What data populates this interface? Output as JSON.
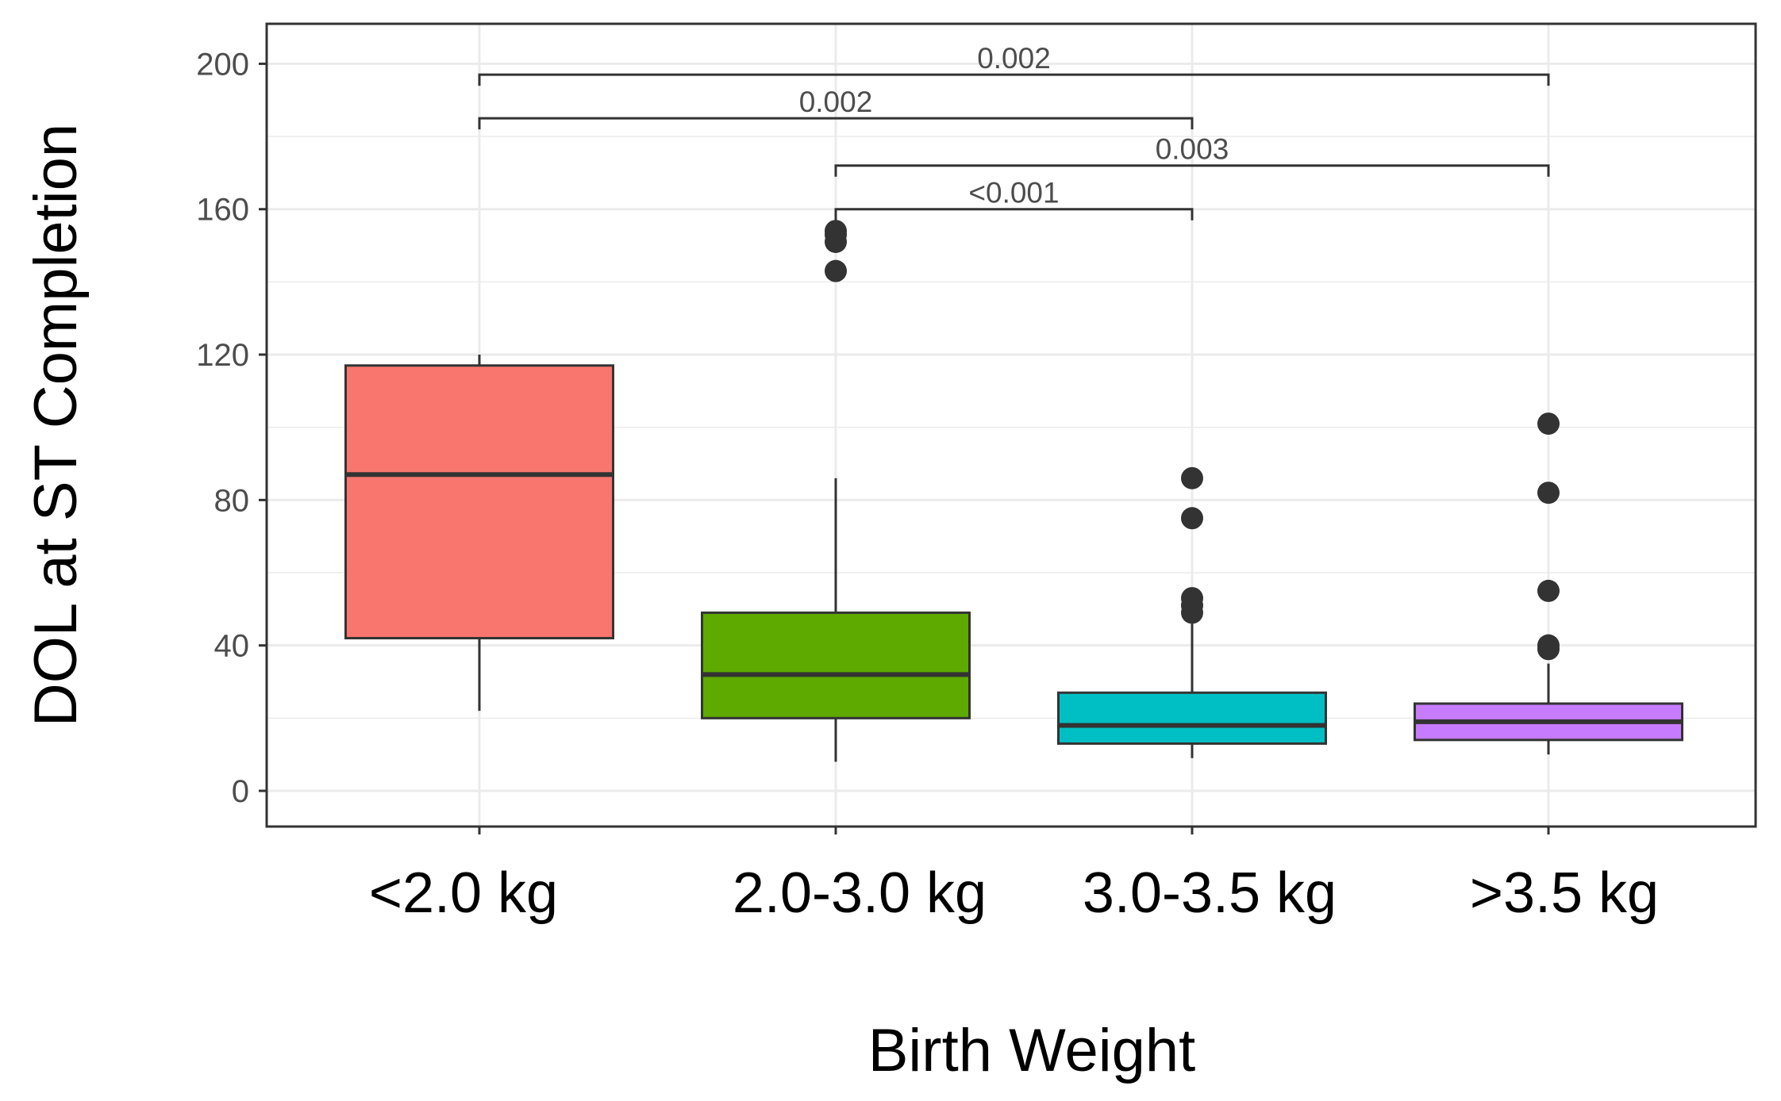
{
  "chart_data": {
    "type": "box",
    "xlabel": "Birth Weight",
    "ylabel": "DOL at ST Completion",
    "ylim": [
      -10,
      210
    ],
    "yticks": [
      0,
      40,
      80,
      120,
      160,
      200
    ],
    "ytick_labels": [
      "0",
      "40",
      "80",
      "120",
      "160",
      "200"
    ],
    "grid": true,
    "categories": [
      "<2.0 kg",
      "2.0-3.0 kg",
      "3.0-3.5 kg",
      ">3.5 kg"
    ],
    "boxes": [
      {
        "category": "<2.0 kg",
        "color": "#f8766d",
        "whisker_low": 22,
        "q1": 42,
        "median": 87,
        "q3": 117,
        "whisker_high": 120,
        "outliers": []
      },
      {
        "category": "2.0-3.0 kg",
        "color": "#5eaa00",
        "whisker_low": 8,
        "q1": 20,
        "median": 32,
        "q3": 49,
        "whisker_high": 86,
        "outliers": [
          143,
          151,
          153,
          154
        ]
      },
      {
        "category": "3.0-3.5 kg",
        "color": "#00bfc4",
        "whisker_low": 9,
        "q1": 13,
        "median": 18,
        "q3": 27,
        "whisker_high": 46,
        "outliers": [
          49,
          51,
          53,
          75,
          86
        ]
      },
      {
        "category": ">3.5 kg",
        "color": "#c77cff",
        "whisker_low": 10,
        "q1": 14,
        "median": 19,
        "q3": 24,
        "whisker_high": 35,
        "outliers": [
          39,
          40,
          55,
          82,
          101
        ]
      }
    ],
    "comparisons": [
      {
        "from": 0,
        "to": 3,
        "y": 197,
        "label": "0.002"
      },
      {
        "from": 0,
        "to": 2,
        "y": 185,
        "label": "0.002"
      },
      {
        "from": 1,
        "to": 3,
        "y": 172,
        "label": "0.003"
      },
      {
        "from": 1,
        "to": 2,
        "y": 160,
        "label": "<0.001"
      }
    ]
  }
}
